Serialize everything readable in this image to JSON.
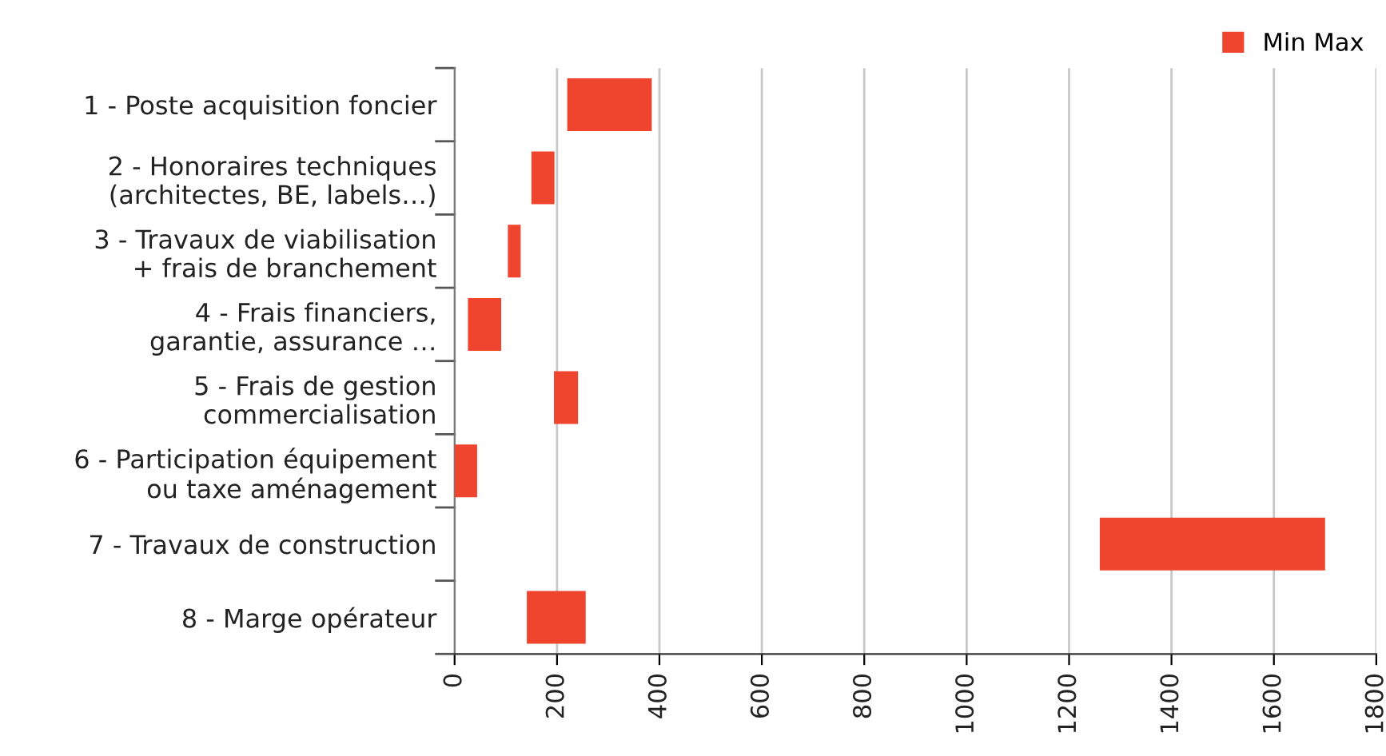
{
  "chart_data": {
    "type": "bar",
    "orientation": "horizontal",
    "categories": [
      "1 - Poste acquisition foncier",
      "2 - Honoraires techniques\n(architectes, BE, labels…)",
      "3 - Travaux de viabilisation\n+ frais de branchement",
      "4 - Frais financiers,\ngarantie, assurance …",
      "5 - Frais de gestion\ncommercialisation",
      "6 - Participation équipement\nou taxe aménagement",
      "7 - Travaux de construction",
      "8 - Marge opérateur"
    ],
    "series": [
      {
        "name": "Min Max",
        "color": "#ef452f",
        "values": [
          165,
          45,
          25,
          65,
          47,
          44,
          440,
          115
        ],
        "base": [
          220,
          150,
          104,
          26,
          194,
          0,
          1260,
          141
        ]
      }
    ],
    "xlim": [
      0,
      1800
    ],
    "xticks": [
      0,
      200,
      400,
      600,
      800,
      1000,
      1200,
      1400,
      1600,
      1800
    ],
    "grid": "x",
    "legend": "top right"
  }
}
